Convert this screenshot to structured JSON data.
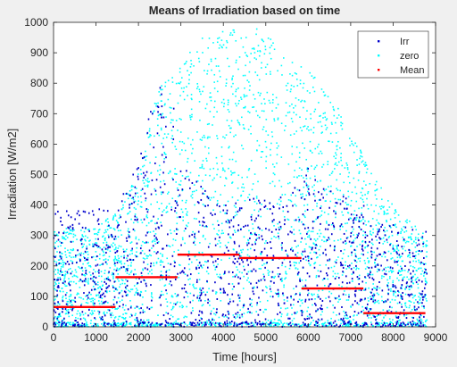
{
  "chart_data": {
    "type": "scatter",
    "title": "Means of Irradiation based on time",
    "xlabel": "Time [hours]",
    "ylabel": "Irradiation [W/m2]",
    "xlim": [
      0,
      9000
    ],
    "ylim": [
      0,
      1000
    ],
    "xticks": [
      0,
      1000,
      2000,
      3000,
      4000,
      5000,
      6000,
      7000,
      8000,
      9000
    ],
    "yticks": [
      0,
      100,
      200,
      300,
      400,
      500,
      600,
      700,
      800,
      900,
      1000
    ],
    "grid": false,
    "legend_position": "top-right",
    "series": [
      {
        "name": "Irr",
        "color": "#0000cc",
        "marker": "dot",
        "envelope": [
          [
            0,
            380
          ],
          [
            500,
            390
          ],
          [
            1000,
            390
          ],
          [
            1460,
            380
          ],
          [
            1500,
            400
          ],
          [
            2000,
            540
          ],
          [
            2200,
            700
          ],
          [
            2500,
            800
          ],
          [
            2900,
            700
          ],
          [
            3000,
            560
          ],
          [
            3200,
            500
          ],
          [
            4000,
            400
          ],
          [
            5000,
            430
          ],
          [
            5800,
            470
          ],
          [
            6000,
            520
          ],
          [
            6500,
            470
          ],
          [
            7000,
            440
          ],
          [
            7300,
            400
          ],
          [
            7500,
            350
          ],
          [
            8000,
            340
          ],
          [
            8800,
            330
          ]
        ],
        "approx_points": 1400
      },
      {
        "name": "zero",
        "color": "#00ffff",
        "marker": "dot",
        "envelope": [
          [
            0,
            320
          ],
          [
            1000,
            330
          ],
          [
            1500,
            380
          ],
          [
            2000,
            520
          ],
          [
            2500,
            800
          ],
          [
            3000,
            860
          ],
          [
            3500,
            960
          ],
          [
            4000,
            990
          ],
          [
            4500,
            980
          ],
          [
            5000,
            980
          ],
          [
            5500,
            900
          ],
          [
            6000,
            850
          ],
          [
            6500,
            770
          ],
          [
            7000,
            650
          ],
          [
            7500,
            500
          ],
          [
            8000,
            400
          ],
          [
            8800,
            300
          ]
        ],
        "approx_points": 3200
      },
      {
        "name": "Mean",
        "color": "#ff0000",
        "marker": "dot",
        "segments": [
          {
            "x": [
              0,
              1460
            ],
            "y": 65
          },
          {
            "x": [
              1460,
              2920
            ],
            "y": 163
          },
          {
            "x": [
              2920,
              4380
            ],
            "y": 237
          },
          {
            "x": [
              4380,
              5840
            ],
            "y": 226
          },
          {
            "x": [
              5840,
              7300
            ],
            "y": 126
          },
          {
            "x": [
              7300,
              8760
            ],
            "y": 45
          }
        ]
      }
    ]
  }
}
